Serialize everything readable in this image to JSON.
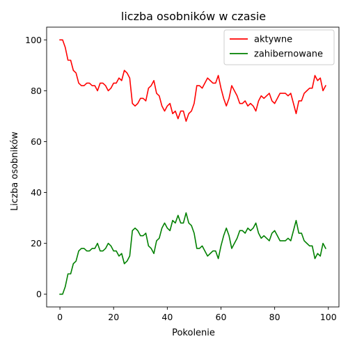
{
  "chart_data": {
    "type": "line",
    "title": "liczba osobników w czasie",
    "xlabel": "Pokolenie",
    "ylabel": "Liczba osobników",
    "xlim": [
      -4.95,
      103.95
    ],
    "ylim": [
      -5,
      105
    ],
    "xticks": [
      0,
      20,
      40,
      60,
      80,
      100
    ],
    "yticks": [
      0,
      20,
      40,
      60,
      80,
      100
    ],
    "grid": false,
    "legend_position": "upper-right",
    "series": [
      {
        "name": "aktywne",
        "color": "#ff0000",
        "x": [
          0,
          1,
          2,
          3,
          4,
          5,
          6,
          7,
          8,
          9,
          10,
          11,
          12,
          13,
          14,
          15,
          16,
          17,
          18,
          19,
          20,
          21,
          22,
          23,
          24,
          25,
          26,
          27,
          28,
          29,
          30,
          31,
          32,
          33,
          34,
          35,
          36,
          37,
          38,
          39,
          40,
          41,
          42,
          43,
          44,
          45,
          46,
          47,
          48,
          49,
          50,
          51,
          52,
          53,
          54,
          55,
          56,
          57,
          58,
          59,
          60,
          61,
          62,
          63,
          64,
          65,
          66,
          67,
          68,
          69,
          70,
          71,
          72,
          73,
          74,
          75,
          76,
          77,
          78,
          79,
          80,
          81,
          82,
          83,
          84,
          85,
          86,
          87,
          88,
          89,
          90,
          91,
          92,
          93,
          94,
          95,
          96,
          97,
          98,
          99
        ],
        "values": [
          100,
          100,
          97,
          92,
          92,
          88,
          87,
          83,
          82,
          82,
          83,
          83,
          82,
          82,
          80,
          83,
          83,
          82,
          80,
          81,
          83,
          83,
          85,
          84,
          88,
          87,
          85,
          75,
          74,
          75,
          77,
          77,
          76,
          81,
          82,
          84,
          79,
          78,
          74,
          72,
          74,
          75,
          71,
          72,
          69,
          72,
          72,
          68,
          71,
          72,
          75,
          82,
          82,
          81,
          83,
          85,
          84,
          83,
          83,
          86,
          81,
          77,
          74,
          77,
          82,
          80,
          78,
          75,
          75,
          76,
          74,
          75,
          74,
          72,
          76,
          78,
          77,
          78,
          79,
          76,
          75,
          77,
          79,
          79,
          79,
          78,
          79,
          75,
          71,
          76,
          76,
          79,
          80,
          81,
          81,
          86,
          84,
          85,
          80,
          82
        ]
      },
      {
        "name": "zahibernowane",
        "color": "#008000",
        "x": [
          0,
          1,
          2,
          3,
          4,
          5,
          6,
          7,
          8,
          9,
          10,
          11,
          12,
          13,
          14,
          15,
          16,
          17,
          18,
          19,
          20,
          21,
          22,
          23,
          24,
          25,
          26,
          27,
          28,
          29,
          30,
          31,
          32,
          33,
          34,
          35,
          36,
          37,
          38,
          39,
          40,
          41,
          42,
          43,
          44,
          45,
          46,
          47,
          48,
          49,
          50,
          51,
          52,
          53,
          54,
          55,
          56,
          57,
          58,
          59,
          60,
          61,
          62,
          63,
          64,
          65,
          66,
          67,
          68,
          69,
          70,
          71,
          72,
          73,
          74,
          75,
          76,
          77,
          78,
          79,
          80,
          81,
          82,
          83,
          84,
          85,
          86,
          87,
          88,
          89,
          90,
          91,
          92,
          93,
          94,
          95,
          96,
          97,
          98,
          99
        ],
        "values": [
          0,
          0,
          3,
          8,
          8,
          12,
          13,
          17,
          18,
          18,
          17,
          17,
          18,
          18,
          20,
          17,
          17,
          18,
          20,
          19,
          17,
          17,
          15,
          16,
          12,
          13,
          15,
          25,
          26,
          25,
          23,
          23,
          24,
          19,
          18,
          16,
          21,
          22,
          26,
          28,
          26,
          25,
          29,
          28,
          31,
          28,
          28,
          32,
          28,
          27,
          24,
          18,
          18,
          19,
          17,
          15,
          16,
          17,
          17,
          14,
          19,
          23,
          26,
          23,
          18,
          20,
          22,
          25,
          25,
          24,
          26,
          25,
          26,
          28,
          24,
          22,
          23,
          22,
          21,
          24,
          25,
          23,
          21,
          21,
          21,
          22,
          21,
          25,
          29,
          24,
          24,
          21,
          20,
          19,
          19,
          14,
          16,
          15,
          20,
          18
        ]
      }
    ]
  }
}
